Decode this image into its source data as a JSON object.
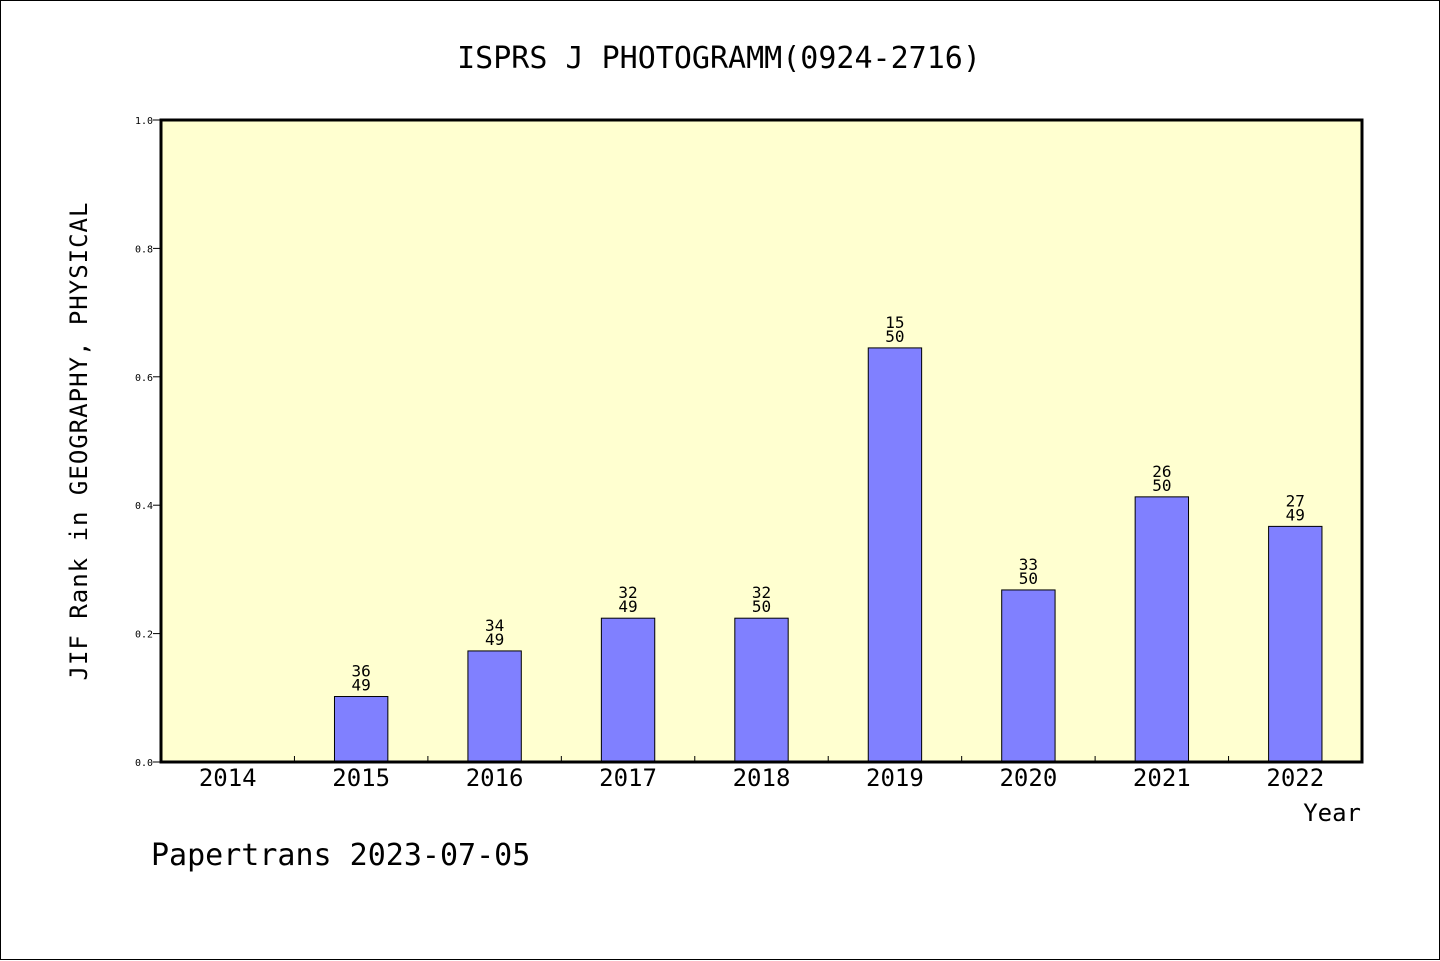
{
  "chart_data": {
    "type": "bar",
    "title": "ISPRS J PHOTOGRAMM(0924-2716)",
    "xlabel": "Year",
    "ylabel": "JIF Rank in GEOGRAPHY, PHYSICAL",
    "ylim": [
      0,
      1.0
    ],
    "yticks": [
      "0.0",
      "0.2",
      "0.4",
      "0.6",
      "0.8",
      "1.0"
    ],
    "categories": [
      "2014",
      "2015",
      "2016",
      "2017",
      "2018",
      "2019",
      "2020",
      "2021",
      "2022"
    ],
    "values": [
      null,
      0.102,
      0.173,
      0.224,
      0.224,
      0.645,
      0.268,
      0.413,
      0.367
    ],
    "labels": [
      null,
      {
        "rank": "36",
        "total": "49"
      },
      {
        "rank": "34",
        "total": "49"
      },
      {
        "rank": "32",
        "total": "49"
      },
      {
        "rank": "32",
        "total": "50"
      },
      {
        "rank": "15",
        "total": "50"
      },
      {
        "rank": "33",
        "total": "50"
      },
      {
        "rank": "26",
        "total": "50"
      },
      {
        "rank": "27",
        "total": "49"
      }
    ],
    "grid": false,
    "colors": {
      "bar": "#8080ff",
      "plot_bg": "#ffffd0"
    }
  },
  "footer": "Papertrans 2023-07-05"
}
